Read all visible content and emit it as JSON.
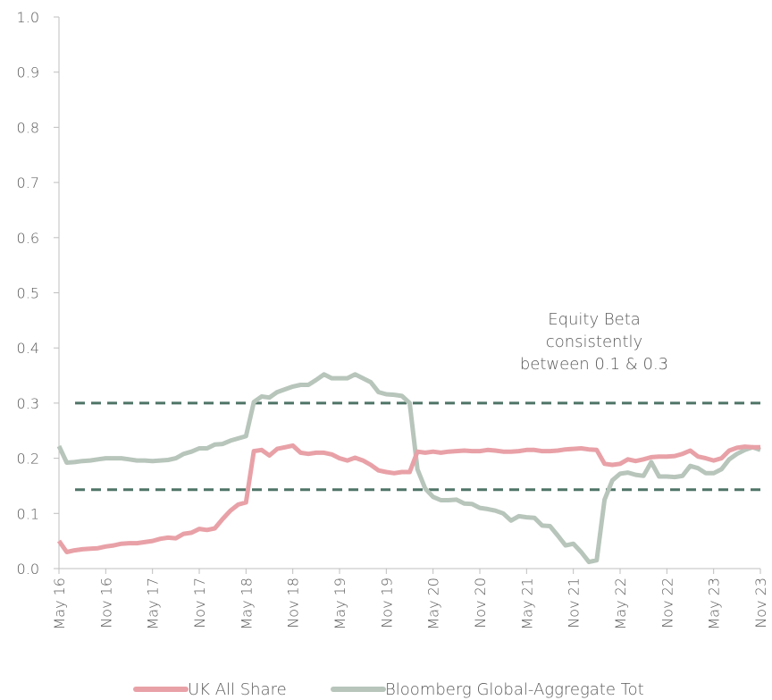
{
  "chart_data": {
    "type": "line",
    "categories": [
      "May 16",
      null,
      null,
      null,
      null,
      null,
      "Nov 16",
      null,
      null,
      null,
      null,
      null,
      "May 17",
      null,
      null,
      null,
      null,
      null,
      "Nov 17",
      null,
      null,
      null,
      null,
      null,
      "May 18",
      null,
      null,
      null,
      null,
      null,
      "Nov 18",
      null,
      null,
      null,
      null,
      null,
      "May 19",
      null,
      null,
      null,
      null,
      null,
      "Nov 19",
      null,
      null,
      null,
      null,
      null,
      "May 20",
      null,
      null,
      null,
      null,
      null,
      "Nov 20",
      null,
      null,
      null,
      null,
      null,
      "May 21",
      null,
      null,
      null,
      null,
      null,
      "Nov 21",
      null,
      null,
      null,
      null,
      null,
      "May 22",
      null,
      null,
      null,
      null,
      null,
      "Nov 22",
      null,
      null,
      null,
      null,
      null,
      "May 23",
      null,
      null,
      null,
      null,
      null,
      "Nov 23"
    ],
    "series": [
      {
        "name": "UK All Share",
        "color": "#e8a1a7",
        "values": [
          0.05,
          0.03,
          0.033,
          0.035,
          0.036,
          0.037,
          0.04,
          0.042,
          0.045,
          0.046,
          0.046,
          0.048,
          0.05,
          0.054,
          0.056,
          0.055,
          0.063,
          0.065,
          0.072,
          0.07,
          0.073,
          0.09,
          0.105,
          0.116,
          0.12,
          0.213,
          0.215,
          0.205,
          0.217,
          0.22,
          0.223,
          0.21,
          0.208,
          0.21,
          0.21,
          0.207,
          0.2,
          0.196,
          0.201,
          0.196,
          0.188,
          0.178,
          0.175,
          0.173,
          0.175,
          0.175,
          0.212,
          0.21,
          0.212,
          0.21,
          0.212,
          0.213,
          0.214,
          0.213,
          0.213,
          0.215,
          0.214,
          0.212,
          0.212,
          0.213,
          0.215,
          0.215,
          0.213,
          0.213,
          0.214,
          0.216,
          0.217,
          0.218,
          0.216,
          0.215,
          0.19,
          0.188,
          0.19,
          0.198,
          0.195,
          0.198,
          0.202,
          0.203,
          0.203,
          0.204,
          0.208,
          0.214,
          0.203,
          0.2,
          0.196,
          0.2,
          0.214,
          0.219,
          0.221,
          0.22,
          0.22
        ]
      },
      {
        "name": "Bloomberg Global-Aggregate Tot",
        "color": "#b7c5bb",
        "values": [
          0.222,
          0.192,
          0.193,
          0.195,
          0.196,
          0.198,
          0.2,
          0.2,
          0.2,
          0.198,
          0.196,
          0.196,
          0.195,
          0.196,
          0.197,
          0.2,
          0.208,
          0.212,
          0.218,
          0.218,
          0.225,
          0.226,
          0.232,
          0.236,
          0.24,
          0.302,
          0.312,
          0.31,
          0.32,
          0.325,
          0.33,
          0.333,
          0.333,
          0.342,
          0.352,
          0.345,
          0.345,
          0.345,
          0.352,
          0.345,
          0.338,
          0.32,
          0.316,
          0.315,
          0.313,
          0.3,
          0.18,
          0.145,
          0.13,
          0.124,
          0.124,
          0.125,
          0.118,
          0.117,
          0.11,
          0.108,
          0.105,
          0.1,
          0.087,
          0.095,
          0.093,
          0.092,
          0.078,
          0.077,
          0.06,
          0.042,
          0.045,
          0.03,
          0.012,
          0.015,
          0.125,
          0.16,
          0.172,
          0.174,
          0.17,
          0.168,
          0.193,
          0.167,
          0.167,
          0.166,
          0.168,
          0.186,
          0.182,
          0.173,
          0.173,
          0.18,
          0.198,
          0.208,
          0.215,
          0.22,
          0.215
        ]
      }
    ],
    "ylim": [
      0,
      1
    ],
    "yticks": [
      {
        "value": 0,
        "label": "0.0"
      },
      0.1,
      0.2,
      0.3,
      0.4,
      0.5,
      0.6,
      0.7,
      0.8,
      0.9,
      {
        "value": 1,
        "label": "1.0"
      }
    ],
    "reference_lines": [
      0.3,
      0.143
    ],
    "reference_color": "#4f7467",
    "annotation": [
      "Equity Beta",
      "consistently",
      "between 0.1 & 0.3"
    ],
    "legend": "bottom"
  }
}
